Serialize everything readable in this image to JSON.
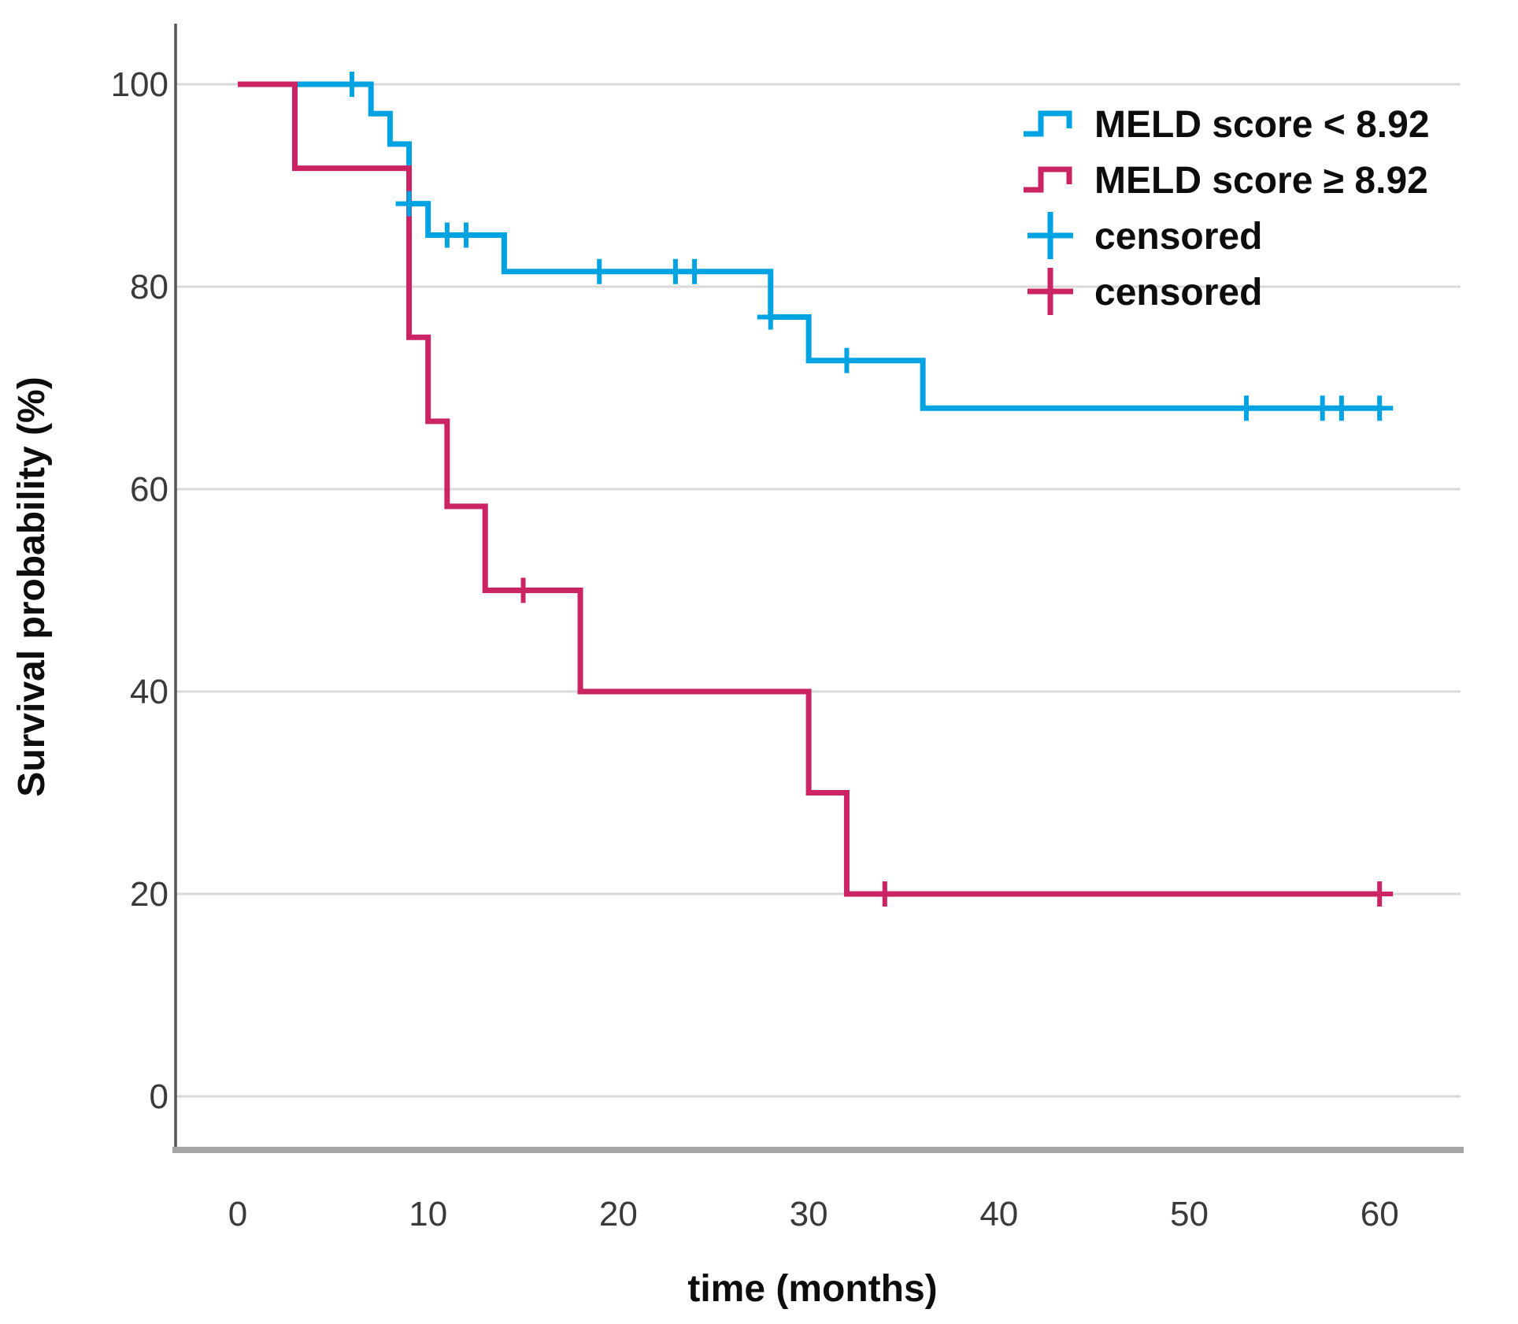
{
  "chart_data": {
    "type": "line",
    "subtype": "kaplan_meier_step",
    "title": "",
    "xlabel": "time (months)",
    "ylabel": "Survival probability (%)",
    "x_ticks": [
      0,
      10,
      20,
      30,
      40,
      50,
      60
    ],
    "y_ticks": [
      0,
      20,
      40,
      60,
      80,
      100
    ],
    "xlim": [
      0,
      60
    ],
    "ylim": [
      0,
      100
    ],
    "grid": "horizontal gridlines at each y tick, full plot width",
    "legend_position": "top-right inside plot",
    "censored_label": "censored",
    "colors": {
      "background": "#FFFFFF",
      "gridline": "#D9D9D9",
      "y_axis_line": "#555555",
      "x_baseline": "#A6A6A6",
      "tick_text": "#3A3A3A",
      "title_text": "#0D0D0D"
    },
    "series": [
      {
        "name": "MELD score < 8.92",
        "color": "#00A3E2",
        "steps": [
          [
            0,
            100
          ],
          [
            7,
            97.1
          ],
          [
            8,
            94.1
          ],
          [
            9,
            88.2
          ],
          [
            10,
            85.1
          ],
          [
            14,
            81.5
          ],
          [
            28,
            77.0
          ],
          [
            30,
            72.7
          ],
          [
            36,
            68.0
          ]
        ],
        "end_time": 60,
        "censored": [
          [
            6,
            100
          ],
          [
            9,
            88.2
          ],
          [
            11,
            85.1
          ],
          [
            12,
            85.1
          ],
          [
            19,
            81.5
          ],
          [
            23,
            81.5
          ],
          [
            24,
            81.5
          ],
          [
            28,
            77.0
          ],
          [
            32,
            72.7
          ],
          [
            53,
            68.0
          ],
          [
            57,
            68.0
          ],
          [
            58,
            68.0
          ],
          [
            60,
            68.0
          ]
        ]
      },
      {
        "name": "MELD score ≥ 8.92",
        "color": "#CB2363",
        "steps": [
          [
            0,
            100
          ],
          [
            3,
            91.7
          ],
          [
            9,
            75.0
          ],
          [
            10,
            66.7
          ],
          [
            11,
            58.3
          ],
          [
            13,
            50.0
          ],
          [
            18,
            40.0
          ],
          [
            30,
            30.0
          ],
          [
            32,
            20.0
          ]
        ],
        "end_time": 60,
        "censored": [
          [
            15,
            50.0
          ],
          [
            34,
            20.0
          ],
          [
            60,
            20.0
          ]
        ]
      }
    ]
  }
}
